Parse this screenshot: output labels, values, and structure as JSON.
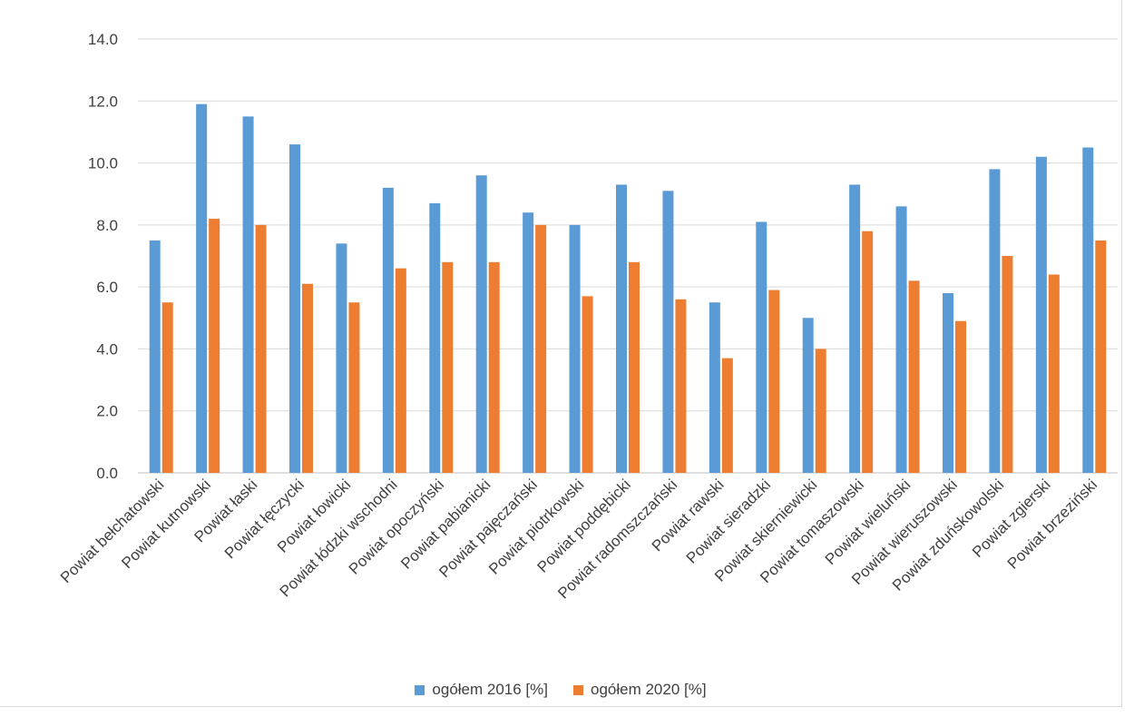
{
  "chart_data": {
    "type": "bar",
    "categories": [
      "Powiat bełchatowski",
      "Powiat kutnowski",
      "Powiat łaski",
      "Powiat łęczycki",
      "Powiat łowicki",
      "Powiat łódzki wschodni",
      "Powiat opoczyński",
      "Powiat pabianicki",
      "Powiat pajęczański",
      "Powiat piotrkowski",
      "Powiat poddębicki",
      "Powiat radomszczański",
      "Powiat rawski",
      "Powiat sieradzki",
      "Powiat skierniewicki",
      "Powiat tomaszowski",
      "Powiat wieluński",
      "Powiat wieruszowski",
      "Powiat zduńskowolski",
      "Powiat zgierski",
      "Powiat brzeziński"
    ],
    "series": [
      {
        "name": "ogółem 2016 [%]",
        "color": "#5b9bd5",
        "values": [
          7.5,
          11.9,
          11.5,
          10.6,
          7.4,
          9.2,
          8.7,
          9.6,
          8.4,
          8.0,
          9.3,
          9.1,
          5.5,
          8.1,
          5.0,
          9.3,
          8.6,
          5.8,
          9.8,
          10.2,
          10.5
        ]
      },
      {
        "name": "ogółem 2020 [%]",
        "color": "#ed7d31",
        "values": [
          5.5,
          8.2,
          8.0,
          6.1,
          5.5,
          6.6,
          6.8,
          6.8,
          8.0,
          5.7,
          6.8,
          5.6,
          3.7,
          5.9,
          4.0,
          7.8,
          6.2,
          4.9,
          7.0,
          6.4,
          7.5
        ]
      }
    ],
    "title": "",
    "xlabel": "",
    "ylabel": "",
    "ylim": [
      0,
      14
    ],
    "yticks": [
      "0.0",
      "2.0",
      "4.0",
      "6.0",
      "8.0",
      "10.0",
      "12.0",
      "14.0"
    ],
    "grid": true,
    "legend_position": "bottom"
  }
}
